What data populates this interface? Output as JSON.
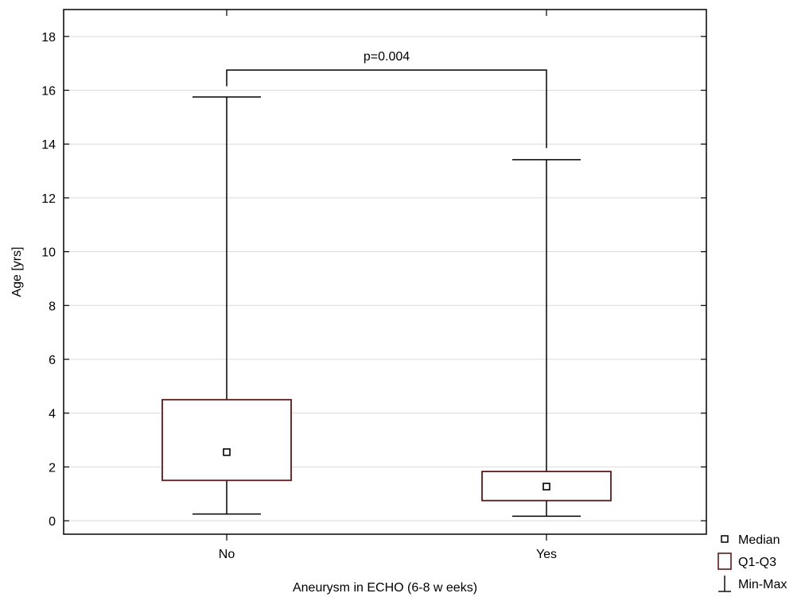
{
  "chart_data": {
    "type": "boxplot",
    "xlabel": "Aneurysm in ECHO (6-8 w eeks)",
    "ylabel": "Age [yrs]",
    "ylim": [
      -0.5,
      19
    ],
    "yticks": [
      0,
      2,
      4,
      6,
      8,
      10,
      12,
      14,
      16,
      18
    ],
    "grid": true,
    "categories": [
      "No",
      "Yes"
    ],
    "boxes": [
      {
        "category": "No",
        "min": 0.25,
        "q1": 1.5,
        "median": 2.55,
        "q3": 4.5,
        "max": 15.75
      },
      {
        "category": "Yes",
        "min": 0.17,
        "q1": 0.75,
        "median": 1.27,
        "q3": 1.83,
        "max": 13.42
      }
    ],
    "annotation": {
      "text": "p=0.004",
      "level": 16.75,
      "drop_left": 16.15,
      "drop_right": 13.85
    },
    "legend": {
      "placement": "bottom-right",
      "items": [
        {
          "label": "Median",
          "symbol": "square-marker"
        },
        {
          "label": "Q1-Q3",
          "symbol": "box"
        },
        {
          "label": "Min-Max",
          "symbol": "whisker"
        }
      ]
    },
    "colors": {
      "box": "#5a1a1a",
      "line": "#000000",
      "grid": "#d9d9d9"
    }
  }
}
